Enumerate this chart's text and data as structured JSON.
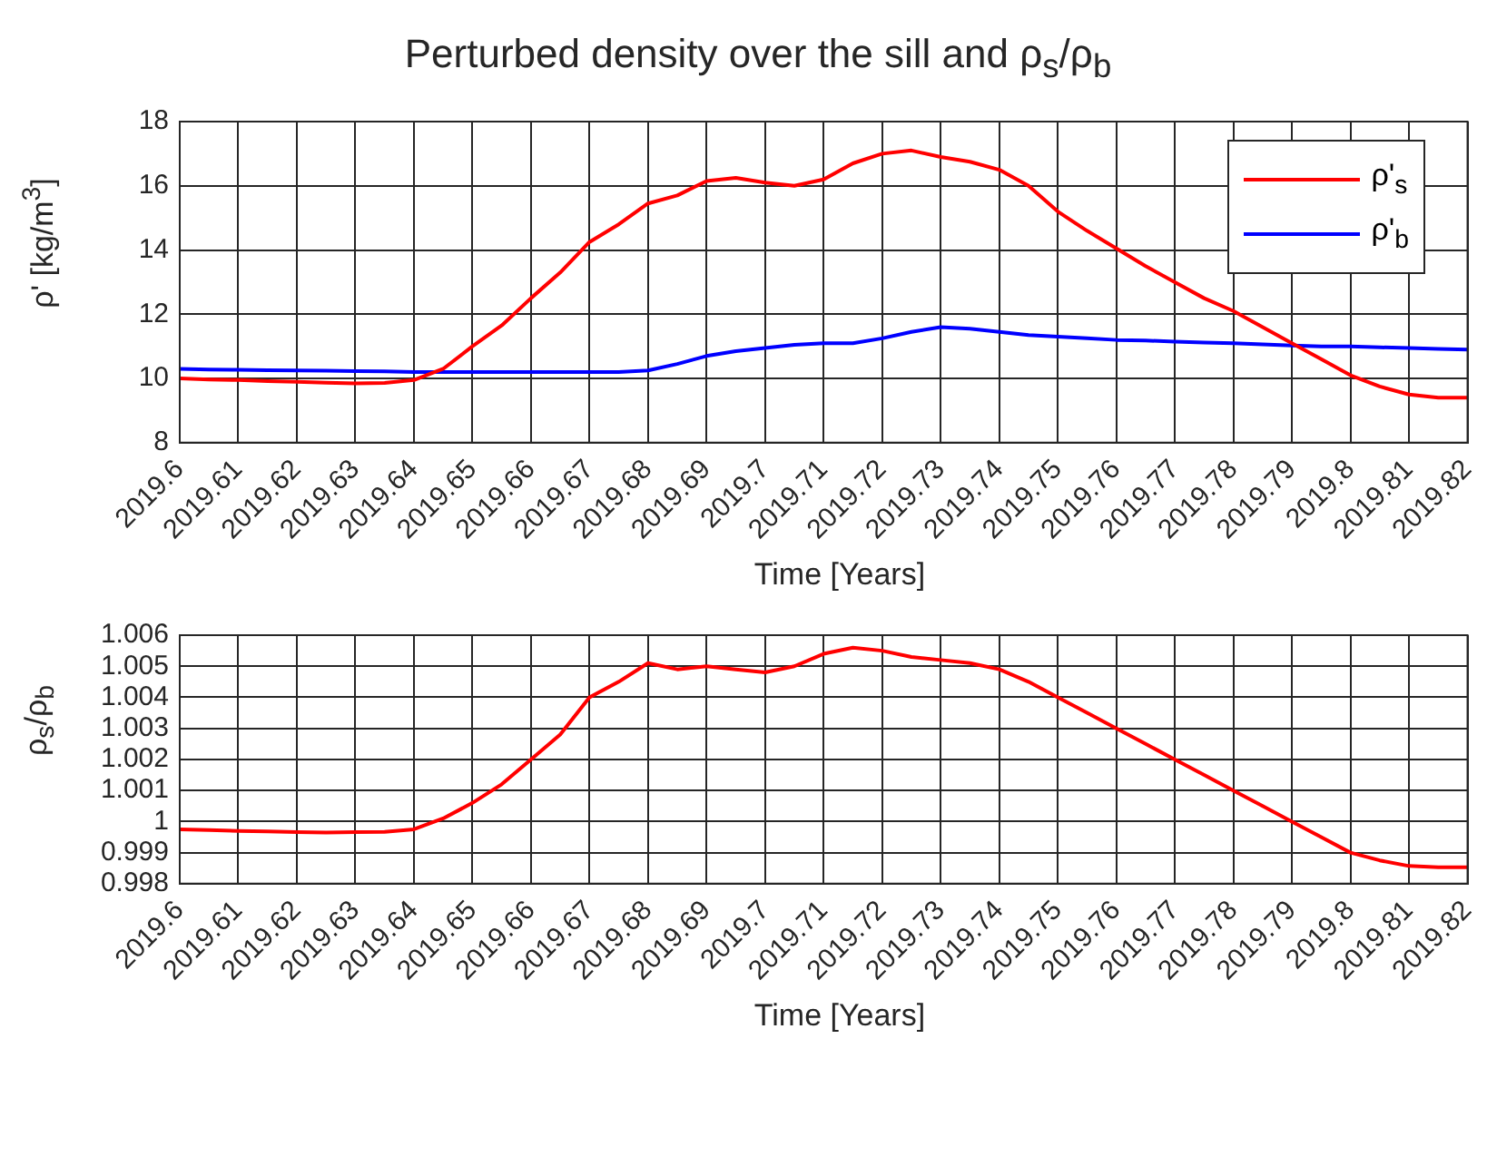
{
  "chart_data": [
    {
      "type": "line",
      "title": "Perturbed density over the sill and ρ$_{s}$/ρ$_{b}$",
      "xlabel": "Time [Years]",
      "ylabel": "ρ' [kg/m$^{3}$]",
      "x": [
        2019.6,
        2019.605,
        2019.61,
        2019.615,
        2019.62,
        2019.625,
        2019.63,
        2019.635,
        2019.64,
        2019.645,
        2019.65,
        2019.655,
        2019.66,
        2019.665,
        2019.67,
        2019.675,
        2019.68,
        2019.685,
        2019.69,
        2019.695,
        2019.7,
        2019.705,
        2019.71,
        2019.715,
        2019.72,
        2019.725,
        2019.73,
        2019.735,
        2019.74,
        2019.745,
        2019.75,
        2019.755,
        2019.76,
        2019.765,
        2019.77,
        2019.775,
        2019.78,
        2019.785,
        2019.79,
        2019.795,
        2019.8,
        2019.805,
        2019.81,
        2019.815,
        2019.82
      ],
      "series": [
        {
          "name": "ρ'$_{s}$",
          "color": "#ff0000",
          "values": [
            10.0,
            9.97,
            9.95,
            9.92,
            9.9,
            9.87,
            9.85,
            9.86,
            9.95,
            10.3,
            11.0,
            11.65,
            12.5,
            13.3,
            14.25,
            14.8,
            15.45,
            15.7,
            16.15,
            16.25,
            16.1,
            16.0,
            16.2,
            16.7,
            17.0,
            17.1,
            16.9,
            16.75,
            16.5,
            16.0,
            15.2,
            14.6,
            14.05,
            13.5,
            13.0,
            12.5,
            12.1,
            11.6,
            11.1,
            10.6,
            10.1,
            9.75,
            9.5,
            9.4,
            9.4
          ]
        },
        {
          "name": "ρ'$_{b}$",
          "color": "#0000ff",
          "values": [
            10.3,
            10.28,
            10.27,
            10.26,
            10.25,
            10.24,
            10.23,
            10.22,
            10.2,
            10.2,
            10.2,
            10.2,
            10.2,
            10.2,
            10.2,
            10.2,
            10.25,
            10.45,
            10.7,
            10.85,
            10.95,
            11.05,
            11.1,
            11.1,
            11.25,
            11.45,
            11.6,
            11.55,
            11.45,
            11.35,
            11.3,
            11.25,
            11.2,
            11.18,
            11.15,
            11.12,
            11.1,
            11.06,
            11.03,
            11.0,
            11.0,
            10.97,
            10.95,
            10.92,
            10.9
          ]
        }
      ],
      "xlim": [
        2019.6,
        2019.82
      ],
      "xticks": [
        2019.6,
        2019.61,
        2019.62,
        2019.63,
        2019.64,
        2019.65,
        2019.66,
        2019.67,
        2019.68,
        2019.69,
        2019.7,
        2019.71,
        2019.72,
        2019.73,
        2019.74,
        2019.75,
        2019.76,
        2019.77,
        2019.78,
        2019.79,
        2019.8,
        2019.81,
        2019.82
      ],
      "ylim": [
        8,
        18
      ],
      "yticks": [
        8,
        10,
        12,
        14,
        16,
        18
      ],
      "grid": true,
      "legend": "top right"
    },
    {
      "type": "line",
      "xlabel": "Time [Years]",
      "ylabel": "ρ$_{s}$/ρ$_{b}$",
      "x": [
        2019.6,
        2019.605,
        2019.61,
        2019.615,
        2019.62,
        2019.625,
        2019.63,
        2019.635,
        2019.64,
        2019.645,
        2019.65,
        2019.655,
        2019.66,
        2019.665,
        2019.67,
        2019.675,
        2019.68,
        2019.685,
        2019.69,
        2019.695,
        2019.7,
        2019.705,
        2019.71,
        2019.715,
        2019.72,
        2019.725,
        2019.73,
        2019.735,
        2019.74,
        2019.745,
        2019.75,
        2019.755,
        2019.76,
        2019.765,
        2019.77,
        2019.775,
        2019.78,
        2019.785,
        2019.79,
        2019.795,
        2019.8,
        2019.805,
        2019.81,
        2019.815,
        2019.82
      ],
      "series": [
        {
          "color": "#ff0000",
          "values": [
            0.99975,
            0.99973,
            0.9997,
            0.99968,
            0.99966,
            0.99965,
            0.99966,
            0.99967,
            0.99975,
            1.0001,
            1.0006,
            1.0012,
            1.002,
            1.0028,
            1.004,
            1.0045,
            1.0051,
            1.0049,
            1.005,
            1.0049,
            1.0048,
            1.005,
            1.0054,
            1.0056,
            1.0055,
            1.0053,
            1.0052,
            1.0051,
            1.0049,
            1.0045,
            1.004,
            1.0035,
            1.003,
            1.0025,
            1.002,
            1.0015,
            1.001,
            1.0005,
            1.0,
            0.9995,
            0.999,
            0.99875,
            0.99857,
            0.99853,
            0.99853
          ]
        }
      ],
      "xlim": [
        2019.6,
        2019.82
      ],
      "xticks": [
        2019.6,
        2019.61,
        2019.62,
        2019.63,
        2019.64,
        2019.65,
        2019.66,
        2019.67,
        2019.68,
        2019.69,
        2019.7,
        2019.71,
        2019.72,
        2019.73,
        2019.74,
        2019.75,
        2019.76,
        2019.77,
        2019.78,
        2019.79,
        2019.8,
        2019.81,
        2019.82
      ],
      "ylim": [
        0.998,
        1.006
      ],
      "yticks": [
        0.998,
        0.999,
        1,
        1.001,
        1.002,
        1.003,
        1.004,
        1.005,
        1.006
      ],
      "grid": true
    }
  ]
}
